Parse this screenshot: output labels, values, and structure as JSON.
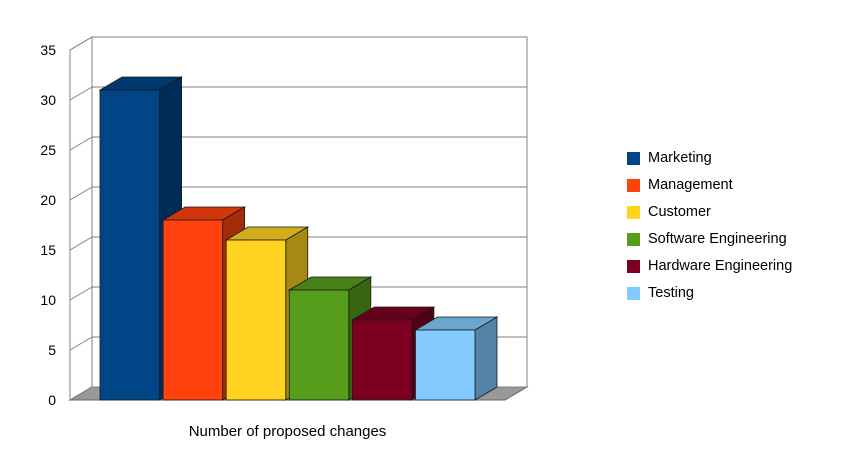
{
  "chart_data": {
    "type": "bar",
    "projection": "3d",
    "title": "",
    "xlabel": "Number of proposed changes",
    "ylabel": "",
    "ylim": [
      0,
      35
    ],
    "ytick_step": 5,
    "yticks": [
      0,
      5,
      10,
      15,
      20,
      25,
      30,
      35
    ],
    "grid": true,
    "legend_position": "right",
    "categories": [
      "Marketing",
      "Management",
      "Customer",
      "Software Engineering",
      "Hardware Engineering",
      "Testing"
    ],
    "values": [
      31,
      18,
      16,
      11,
      8,
      7
    ],
    "colors": [
      "#004586",
      "#FF420E",
      "#FFD320",
      "#579D1C",
      "#7E0021",
      "#83CAFF"
    ],
    "wall_color": "#FFFFFF",
    "grid_color": "#808080",
    "floor_color": "#999999",
    "bar_outline_color": "#1a1a1a",
    "axis_text_color": "#000000"
  }
}
